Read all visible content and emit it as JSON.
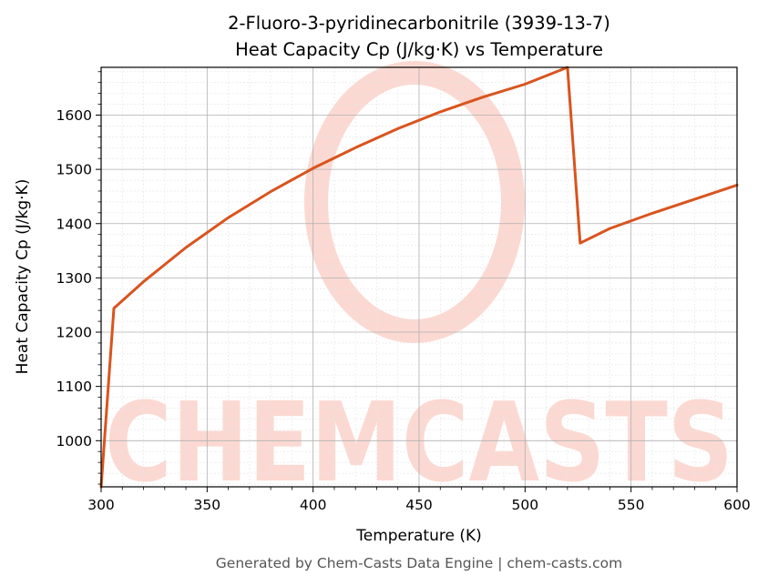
{
  "chart_data": {
    "type": "line",
    "title_line1": "2-Fluoro-3-pyridinecarbonitrile (3939-13-7)",
    "title_line2": "Heat Capacity Cp (J/kg·K) vs Temperature",
    "xlabel": "Temperature (K)",
    "ylabel": "Heat Capacity Cp (J/kg·K)",
    "xlim": [
      300,
      600
    ],
    "ylim": [
      915,
      1688
    ],
    "xticks": [
      300,
      350,
      400,
      450,
      500,
      550,
      600
    ],
    "yticks": [
      1000,
      1100,
      1200,
      1300,
      1400,
      1500,
      1600
    ],
    "grid": true,
    "series": [
      {
        "color": "#d9541e",
        "x": [
          300,
          306,
          320,
          340,
          360,
          380,
          400,
          420,
          440,
          460,
          480,
          500,
          520,
          526,
          540,
          560,
          580,
          600
        ],
        "y": [
          915,
          1244,
          1293,
          1356,
          1411,
          1459,
          1502,
          1540,
          1575,
          1606,
          1633,
          1657,
          1688,
          1364,
          1391,
          1419,
          1445,
          1471
        ]
      }
    ]
  },
  "footer": "Generated by Chem-Casts Data Engine | chem-casts.com",
  "watermark": "CHEMCASTS",
  "colors": {
    "line": "#d9541e",
    "watermark": "#fbd9d2",
    "grid_major": "#b0b0b0",
    "grid_minor": "#e4e4e4"
  }
}
